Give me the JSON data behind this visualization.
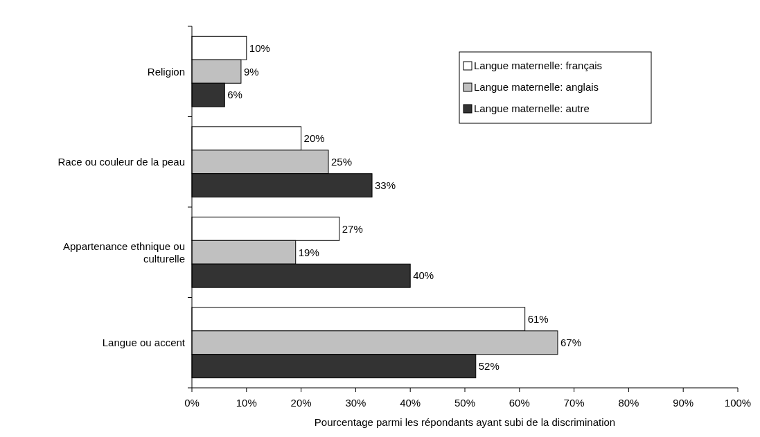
{
  "chart_data": {
    "type": "bar",
    "orientation": "horizontal",
    "xlabel": "Pourcentage parmi les répondants ayant subi de la discrimination",
    "categories": [
      "Religion",
      "Race ou couleur de la peau",
      "Appartenance ethnique ou culturelle",
      "Langue ou accent"
    ],
    "series": [
      {
        "name": "Langue maternelle: français",
        "color": "#ffffff",
        "values": [
          10,
          20,
          27,
          61
        ],
        "value_labels": [
          "10%",
          "20%",
          "27%",
          "61%"
        ]
      },
      {
        "name": "Langue maternelle: anglais",
        "color": "#c0c0c0",
        "values": [
          9,
          25,
          19,
          67
        ],
        "value_labels": [
          "9%",
          "25%",
          "19%",
          "67%"
        ]
      },
      {
        "name": "Langue maternelle: autre",
        "color": "#333333",
        "values": [
          6,
          33,
          40,
          52
        ],
        "value_labels": [
          "6%",
          "33%",
          "40%",
          "52%"
        ]
      }
    ],
    "xlim": [
      0,
      100
    ],
    "xticks": [
      {
        "value": 0,
        "label": "0%"
      },
      {
        "value": 10,
        "label": "10%"
      },
      {
        "value": 20,
        "label": "20%"
      },
      {
        "value": 30,
        "label": "30%"
      },
      {
        "value": 40,
        "label": "40%"
      },
      {
        "value": 50,
        "label": "50%"
      },
      {
        "value": 60,
        "label": "60%"
      },
      {
        "value": 70,
        "label": "70%"
      },
      {
        "value": 80,
        "label": "80%"
      },
      {
        "value": 90,
        "label": "90%"
      },
      {
        "value": 100,
        "label": "100%"
      }
    ],
    "grid": false,
    "legend": "top right"
  }
}
